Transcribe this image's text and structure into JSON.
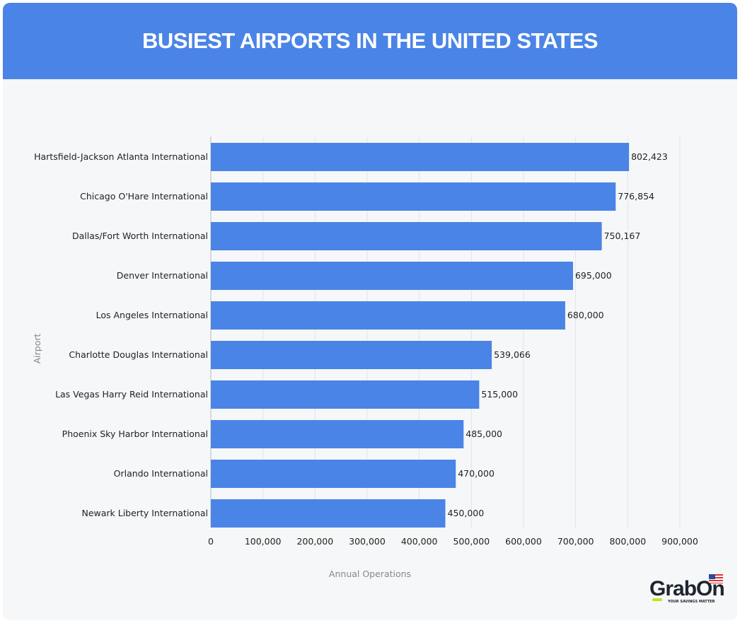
{
  "title": "BUSIEST AIRPORTS IN THE UNITED STATES",
  "chart_data": {
    "type": "bar",
    "orientation": "horizontal",
    "categories": [
      "Hartsfield-Jackson Atlanta International",
      "Chicago O'Hare International",
      "Dallas/Fort Worth International",
      "Denver International",
      "Los Angeles International",
      "Charlotte Douglas International",
      "Las Vegas Harry Reid International",
      "Phoenix Sky Harbor International",
      "Orlando International",
      "Newark Liberty International"
    ],
    "values": [
      802423,
      776854,
      750167,
      695000,
      680000,
      539066,
      515000,
      485000,
      470000,
      450000
    ],
    "data_labels": [
      "802,423",
      "776,854",
      "750,167",
      "695,000",
      "680,000",
      "539,066",
      "515,000",
      "485,000",
      "470,000",
      "450,000"
    ],
    "xlabel": "Annual Operations",
    "ylabel": "Airport",
    "xlim": [
      0,
      900000
    ],
    "x_ticks": [
      "0",
      "100,000",
      "200,000",
      "300,000",
      "400,000",
      "500,000",
      "600,000",
      "700,000",
      "800,000",
      "900,000"
    ],
    "grid": "vertical",
    "bar_color": "#4a84e6"
  },
  "logo": {
    "text": "GrabOn",
    "tagline": "YOUR SAVINGS MATTER"
  }
}
